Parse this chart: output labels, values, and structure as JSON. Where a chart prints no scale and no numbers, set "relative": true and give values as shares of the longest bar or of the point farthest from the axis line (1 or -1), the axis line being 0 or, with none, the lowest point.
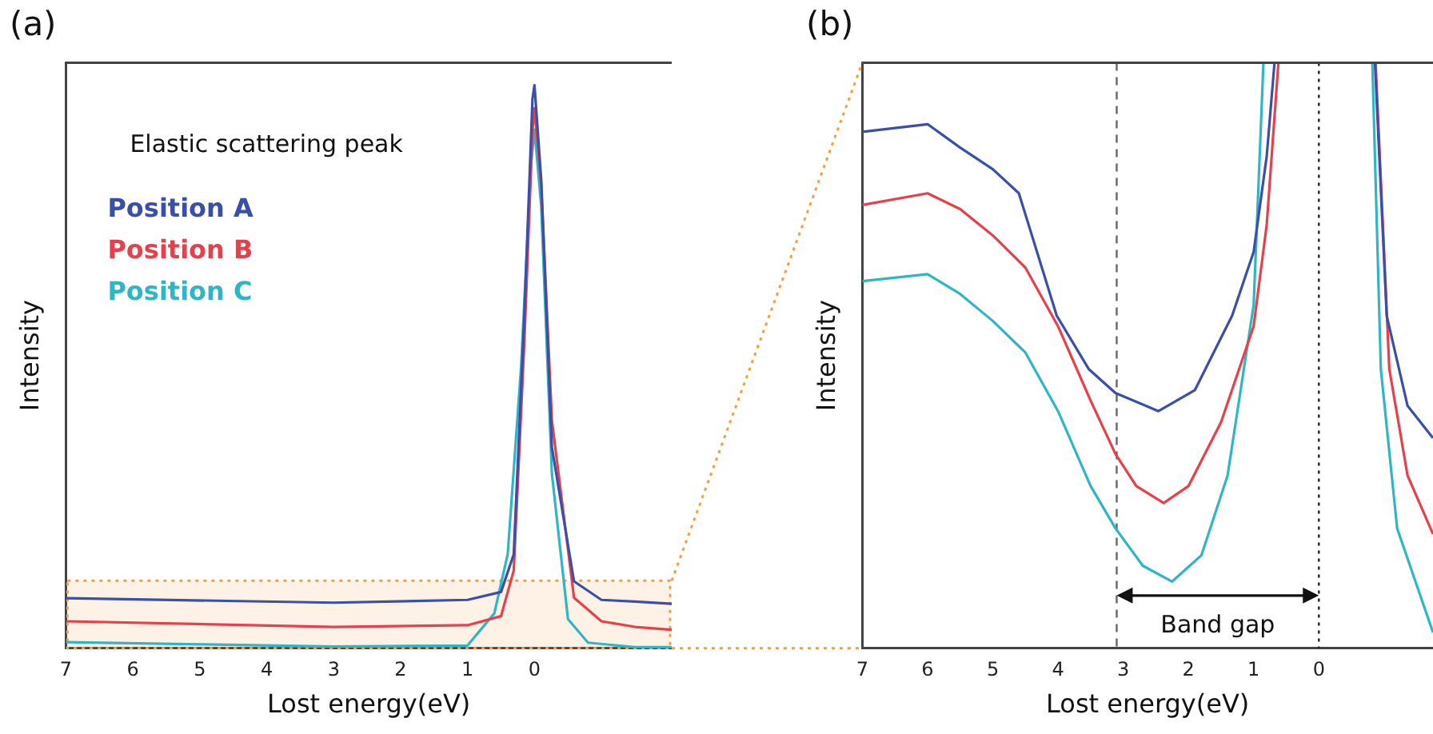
{
  "chart_data": [
    {
      "type": "line",
      "title": "(a)",
      "xlabel": "Lost energy(eV)",
      "ylabel": "Intensity",
      "relative": true,
      "xlim": [
        7,
        -2.05
      ],
      "xticks": [
        7,
        6,
        5,
        4,
        3,
        2,
        1,
        0
      ],
      "legend": "top left",
      "grid": false,
      "marker": "none",
      "annotations": [
        "Elastic scattering peak"
      ],
      "bands": [
        {
          "axis": "y",
          "from": 0,
          "to": 0.12,
          "color": "#f5a040"
        }
      ],
      "series": [
        {
          "name": "Position A",
          "color": "#3a4fa8",
          "x": [
            7,
            3,
            1,
            0.5,
            0.31,
            0.15,
            0.03,
            0,
            -0.1,
            -0.26,
            -0.59,
            -1,
            -1.5,
            -2.05
          ],
          "values": [
            0.089,
            0.081,
            0.086,
            0.1,
            0.167,
            0.595,
            0.976,
            1,
            0.833,
            0.357,
            0.119,
            0.086,
            0.083,
            0.079
          ]
        },
        {
          "name": "Position B",
          "color": "#e8404a",
          "x": [
            7,
            3,
            1,
            0.5,
            0.31,
            0.15,
            0.03,
            0,
            -0.1,
            -0.26,
            -0.59,
            -1,
            -1.5,
            -2.05
          ],
          "values": [
            0.048,
            0.038,
            0.041,
            0.057,
            0.138,
            0.548,
            0.919,
            0.959,
            0.824,
            0.405,
            0.09,
            0.048,
            0.038,
            0.033
          ]
        },
        {
          "name": "Position C",
          "color": "#2fb6c4",
          "x": [
            7,
            5,
            3,
            1,
            0.6,
            0.4,
            0.2,
            0.05,
            0,
            -0.1,
            -0.26,
            -0.5,
            -0.8,
            -1.5,
            -2.05
          ],
          "values": [
            0.011,
            0.007,
            0.003,
            0.005,
            0.062,
            0.167,
            0.5,
            0.862,
            0.921,
            0.786,
            0.31,
            0.052,
            0.01,
            0.002,
            0.002
          ]
        }
      ]
    },
    {
      "type": "line",
      "title": "(b)",
      "xlabel": "Lost energy(eV)",
      "ylabel": "Intensity",
      "relative": true,
      "xlim": [
        7,
        -1.75
      ],
      "xticks": [
        7,
        6,
        5,
        4,
        3,
        2,
        1,
        0
      ],
      "grid": false,
      "marker": "none",
      "annotations": [
        "Band gap"
      ],
      "ref_lines": [
        {
          "axis": "x",
          "value": 3.1,
          "color": "#666666",
          "line_style": "dashed"
        },
        {
          "axis": "x",
          "value": 0,
          "color": "#222222",
          "line_style": "dotted"
        }
      ],
      "series": [
        {
          "color": "#3a4fa8",
          "x": [
            7,
            6,
            5.5,
            5,
            4.6,
            4.02,
            3.53,
            3.12,
            2.46,
            1.9,
            1.33,
            1.0,
            0.8,
            0.68,
            0,
            -0.86,
            -1.04,
            -1.36,
            -1.75
          ],
          "values": [
            0.882,
            0.895,
            0.855,
            0.818,
            0.777,
            0.568,
            0.477,
            0.436,
            0.405,
            0.441,
            0.568,
            0.677,
            0.84,
            1,
            null,
            1,
            0.568,
            0.414,
            0.359
          ]
        },
        {
          "color": "#e8404a",
          "x": [
            7,
            6,
            5.5,
            5,
            4.5,
            4.0,
            3.5,
            3.12,
            2.8,
            2.38,
            2.0,
            1.5,
            1.0,
            0.8,
            0.62,
            0,
            -0.87,
            -1.08,
            -1.36,
            -1.75
          ],
          "values": [
            0.757,
            0.777,
            0.75,
            0.705,
            0.65,
            0.55,
            0.423,
            0.332,
            0.277,
            0.248,
            0.277,
            0.386,
            0.55,
            0.723,
            1,
            null,
            1,
            0.477,
            0.295,
            0.195
          ]
        },
        {
          "color": "#2fb6c4",
          "x": [
            7,
            6,
            5.5,
            5,
            4.5,
            4.0,
            3.5,
            3.12,
            2.7,
            2.25,
            1.8,
            1.4,
            1.0,
            0.85,
            0,
            -0.82,
            -0.95,
            -1.2,
            -1.75
          ],
          "values": [
            0.627,
            0.639,
            0.605,
            0.559,
            0.505,
            0.405,
            0.277,
            0.205,
            0.141,
            0.114,
            0.159,
            0.295,
            0.586,
            1,
            null,
            1,
            0.477,
            0.205,
            0.027
          ]
        }
      ]
    }
  ]
}
